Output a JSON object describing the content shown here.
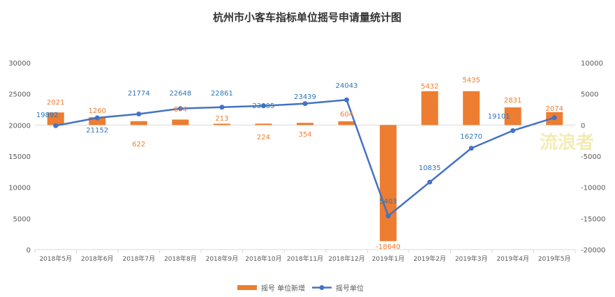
{
  "chart_data": {
    "type": "bar+line",
    "title": "杭州市小客车指标单位摇号申请量统计图",
    "categories": [
      "2018年5月",
      "2018年6月",
      "2018年7月",
      "2018年8月",
      "2018年9月",
      "2018年10月",
      "2018年11月",
      "2018年12月",
      "2019年1月",
      "2019年2月",
      "2019年3月",
      "2019年4月",
      "2019年5月"
    ],
    "series": [
      {
        "name": "摇号 单位新增",
        "type": "bar",
        "axis": "right",
        "color": "#ed7d31",
        "values": [
          2021,
          1260,
          622,
          874,
          213,
          224,
          354,
          604,
          -18640,
          5432,
          5435,
          2831,
          2074
        ]
      },
      {
        "name": "摇号单位",
        "type": "line",
        "axis": "left",
        "color": "#4472c4",
        "values": [
          19892,
          21152,
          21774,
          22648,
          22861,
          23085,
          23439,
          24043,
          5403,
          10835,
          16270,
          19101,
          21175
        ]
      }
    ],
    "bar_labels": [
      "2021",
      "1260",
      "622",
      "874",
      "213",
      "224",
      "354",
      "604",
      "-18640",
      "5432",
      "5435",
      "2831",
      "2074"
    ],
    "line_labels": [
      "19892",
      "21152",
      "21774",
      "22648",
      "22861",
      "23085",
      "23439",
      "24043",
      "5403",
      "10835",
      "16270",
      "19101",
      ""
    ],
    "y_left": {
      "min": 0,
      "max": 30000,
      "step": 5000,
      "ticks": [
        "0",
        "5000",
        "10000",
        "15000",
        "20000",
        "25000",
        "30000"
      ]
    },
    "y_right": {
      "min": -20000,
      "max": 10000,
      "step": 5000,
      "ticks": [
        "-20000",
        "-15000",
        "-10000",
        "-5000",
        "0",
        "5000",
        "10000"
      ]
    },
    "legend": [
      "摇号 单位新增",
      "摇号单位"
    ],
    "legend_position": "bottom",
    "grid": false
  },
  "watermark": "流浪者"
}
